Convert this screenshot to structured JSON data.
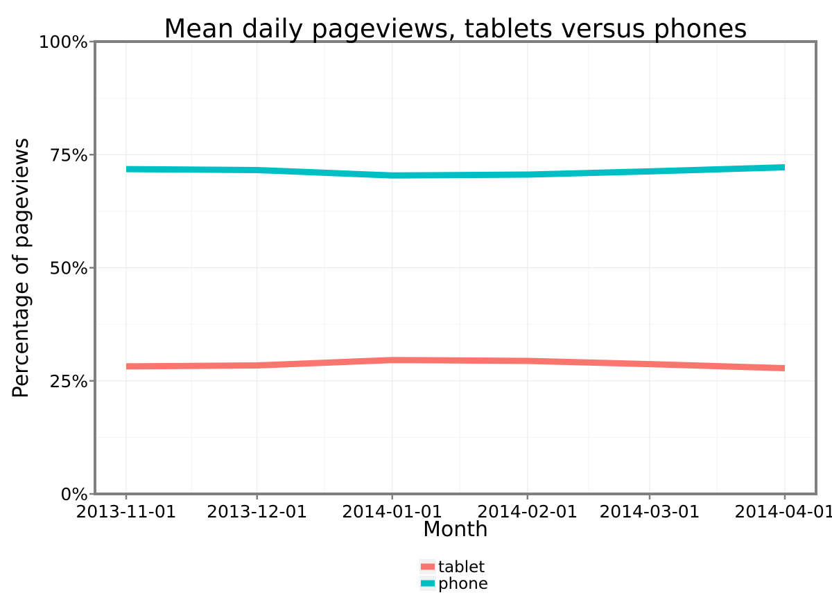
{
  "chart_data": {
    "type": "line",
    "title": "Mean daily pageviews, tablets versus phones",
    "xlabel": "Month",
    "ylabel": "Percentage of pageviews",
    "x": [
      "2013-11-01",
      "2013-12-01",
      "2014-01-01",
      "2014-02-01",
      "2014-03-01",
      "2014-04-01"
    ],
    "x_tick_labels": [
      "2013-11-01",
      "2013-12-01",
      "2014-01-01",
      "2014-02-01",
      "2014-03-01",
      "2014-04-01"
    ],
    "y_tick_labels": [
      "0%",
      "25%",
      "50%",
      "75%",
      "100%"
    ],
    "y_ticks": [
      0,
      25,
      50,
      75,
      100
    ],
    "ylim": [
      0,
      100
    ],
    "y_unit": "%",
    "grid": true,
    "legend_position": "bottom",
    "series": [
      {
        "name": "tablet",
        "color": "#F8766D",
        "values": [
          28.2,
          28.4,
          29.6,
          29.4,
          28.7,
          27.8
        ]
      },
      {
        "name": "phone",
        "color": "#00BFC4",
        "values": [
          71.8,
          71.6,
          70.4,
          70.6,
          71.3,
          72.2
        ]
      }
    ]
  }
}
